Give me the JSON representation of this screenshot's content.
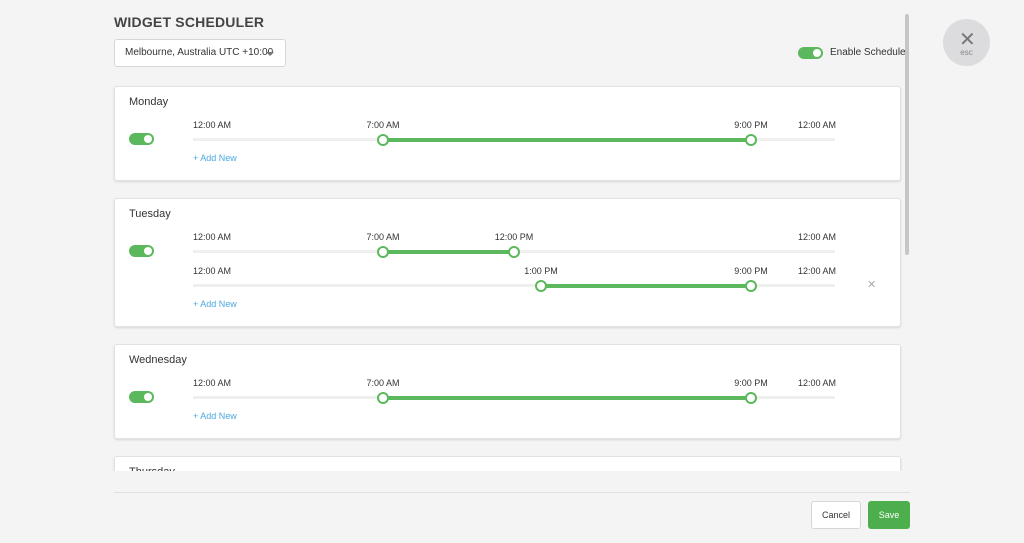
{
  "title": "WIDGET SCHEDULER",
  "timezone": "Melbourne, Australia UTC +10:00",
  "enable_label": "Enable Scheduler",
  "esc": "esc",
  "days": [
    {
      "name": "Monday",
      "ranges": [
        {
          "day_start": "12:00 AM",
          "start": "7:00 AM",
          "end": "9:00 PM",
          "day_end": "12:00 AM"
        }
      ],
      "add_new": "+ Add New"
    },
    {
      "name": "Tuesday",
      "ranges": [
        {
          "day_start": "12:00 AM",
          "start": "7:00 AM",
          "end": "12:00 PM",
          "day_end": "12:00 AM"
        },
        {
          "day_start": "12:00 AM",
          "start": "1:00 PM",
          "end": "9:00 PM",
          "day_end": "12:00 AM"
        }
      ],
      "add_new": "+ Add New"
    },
    {
      "name": "Wednesday",
      "ranges": [
        {
          "day_start": "12:00 AM",
          "start": "7:00 AM",
          "end": "9:00 PM",
          "day_end": "12:00 AM"
        }
      ],
      "add_new": "+ Add New"
    },
    {
      "name": "Thursday",
      "ranges": []
    }
  ],
  "buttons": {
    "cancel": "Cancel",
    "save": "Save"
  }
}
